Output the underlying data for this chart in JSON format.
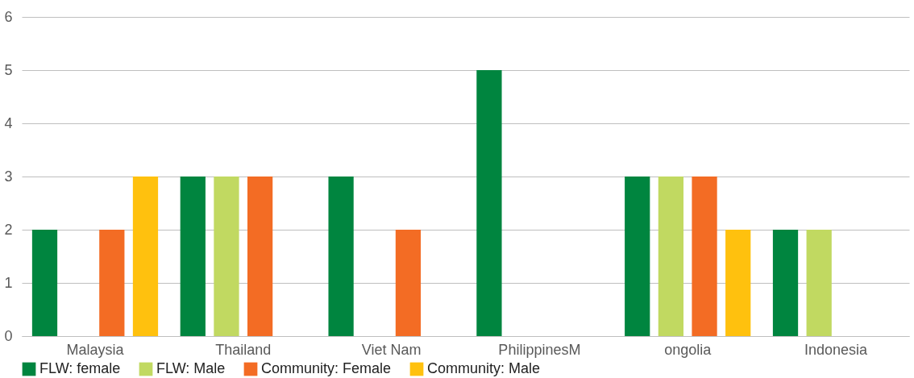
{
  "chart_data": {
    "type": "bar",
    "categories": [
      "Malaysia",
      "Thailand",
      "Viet Nam",
      "PhilippinesM",
      "ongolia",
      "Indonesia"
    ],
    "series": [
      {
        "name": "FLW: female",
        "color": "#00853f",
        "values": [
          2,
          3,
          3,
          5,
          3,
          2
        ]
      },
      {
        "name": "FLW: Male",
        "color": "#c1d961",
        "values": [
          null,
          3,
          null,
          null,
          3,
          2
        ]
      },
      {
        "name": "Community: Female",
        "color": "#f36c24",
        "values": [
          2,
          3,
          2,
          null,
          3,
          null
        ]
      },
      {
        "name": "Community: Male",
        "color": "#ffc10e",
        "values": [
          3,
          null,
          null,
          null,
          2,
          null
        ]
      }
    ],
    "ylim": [
      0,
      6
    ],
    "yticks": [
      0,
      1,
      2,
      3,
      4,
      5,
      6
    ],
    "grid": "y",
    "legend": "bottom"
  }
}
